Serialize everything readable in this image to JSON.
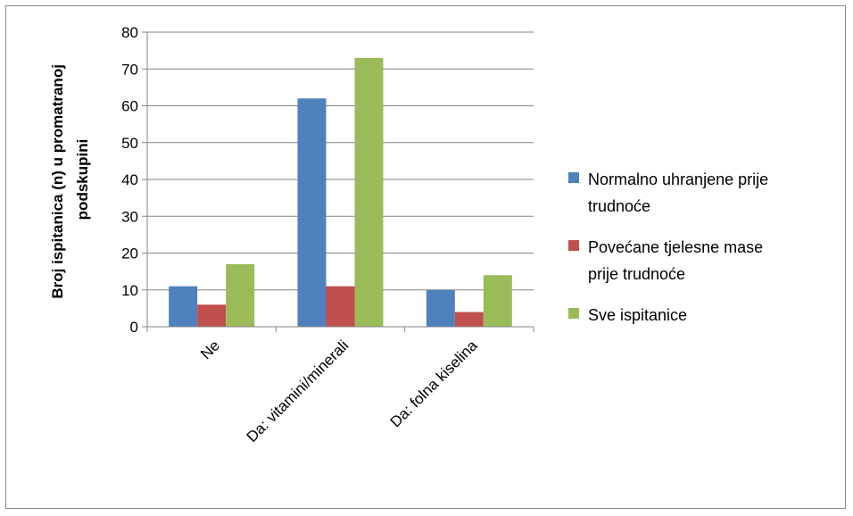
{
  "chart_data": {
    "type": "bar",
    "categories": [
      "Ne",
      "Da: vitamini/minerali",
      "Da: folna kiselina"
    ],
    "series": [
      {
        "name": "Normalno uhranjene prije trudnoće",
        "values": [
          11,
          62,
          10
        ],
        "color": "#4f81bd"
      },
      {
        "name": "Povećane tjelesne mase prije trudnoće",
        "values": [
          6,
          11,
          4
        ],
        "color": "#c0504d"
      },
      {
        "name": "Sve ispitanice",
        "values": [
          17,
          73,
          14
        ],
        "color": "#9bbb59"
      }
    ],
    "ylabel": [
      "Broj ispitanica (n) u promatranoj",
      "podskupini"
    ],
    "ylim": [
      0,
      80
    ],
    "yticks": [
      0,
      10,
      20,
      30,
      40,
      50,
      60,
      70,
      80
    ],
    "grid": true,
    "legend_position": "right"
  },
  "legend": {
    "lines": [
      [
        "Normalno uhranjene prije",
        "trudnoće"
      ],
      [
        "Povećane tjelesne mase",
        "prije trudnoće"
      ],
      [
        "Sve ispitanice"
      ]
    ]
  }
}
